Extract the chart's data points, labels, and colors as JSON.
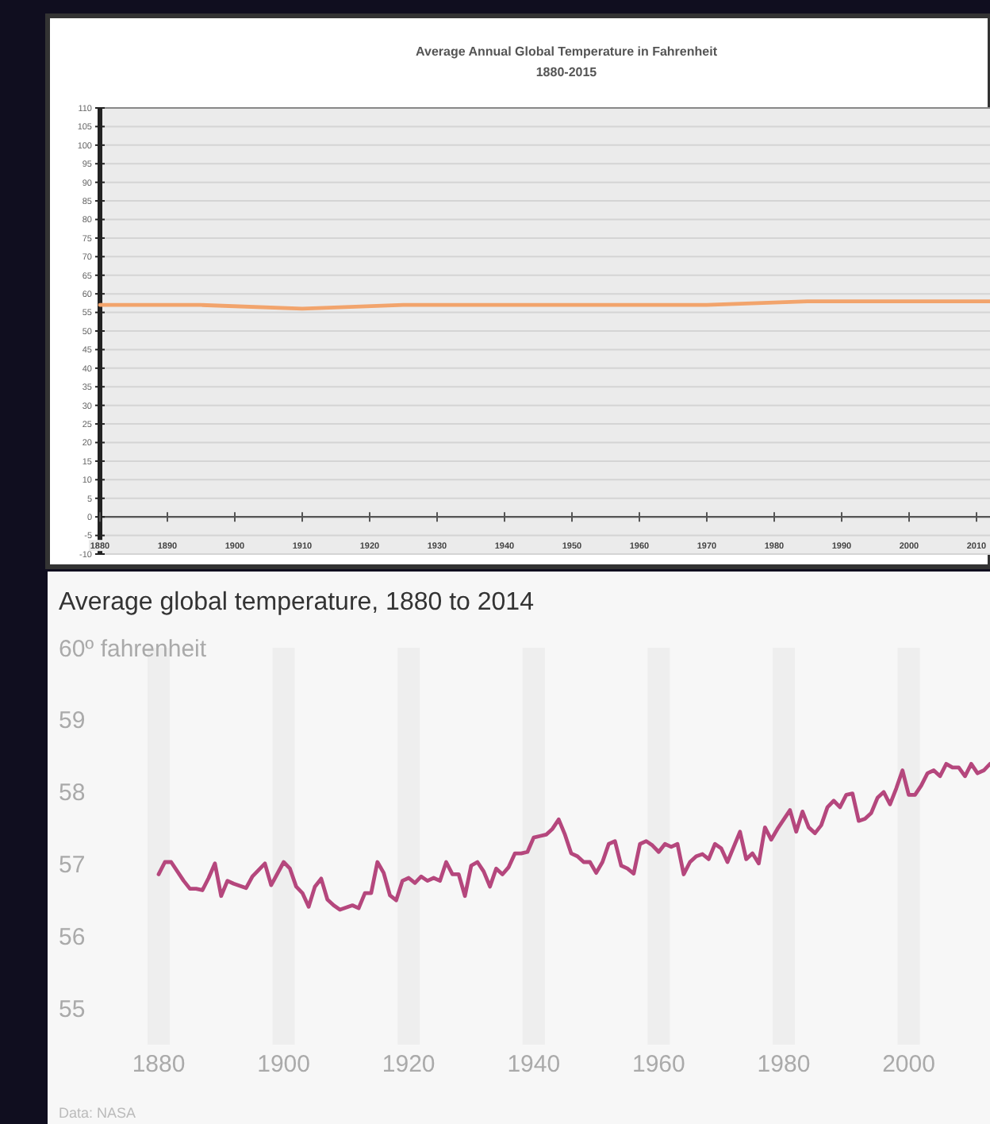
{
  "chart_data": [
    {
      "type": "line",
      "title": "Average Annual Global Temperature in Fahrenheit",
      "subtitle": "1880-2015",
      "x": [
        1880,
        1895,
        1910,
        1925,
        1940,
        1955,
        1970,
        1985,
        2000,
        2012
      ],
      "values": [
        57,
        57,
        56,
        57,
        57,
        57,
        57,
        58,
        58,
        58
      ],
      "color": "#f2a46c",
      "xlim": [
        1880,
        2012
      ],
      "xticks": [
        1880,
        1890,
        1900,
        1910,
        1920,
        1930,
        1940,
        1950,
        1960,
        1970,
        1980,
        1990,
        2000,
        2010
      ],
      "ylim": [
        -10,
        110
      ],
      "yticks": [
        -10,
        -5,
        0,
        5,
        10,
        15,
        20,
        25,
        30,
        35,
        40,
        45,
        50,
        55,
        60,
        65,
        70,
        75,
        80,
        85,
        90,
        95,
        100,
        105,
        110
      ],
      "grid": "y"
    },
    {
      "type": "line",
      "title": "Average global temperature, 1880 to 2014",
      "annotations": [
        "Data: NASA"
      ],
      "x": [
        1880,
        1881,
        1882,
        1884,
        1885,
        1886,
        1887,
        1888,
        1889,
        1890,
        1891,
        1892,
        1894,
        1895,
        1897,
        1898,
        1900,
        1901,
        1902,
        1903,
        1904,
        1905,
        1906,
        1907,
        1908,
        1909,
        1911,
        1912,
        1913,
        1914,
        1915,
        1916,
        1917,
        1918,
        1919,
        1920,
        1921,
        1922,
        1923,
        1924,
        1925,
        1926,
        1927,
        1928,
        1929,
        1930,
        1931,
        1932,
        1933,
        1934,
        1935,
        1936,
        1937,
        1938,
        1939,
        1940,
        1941,
        1942,
        1943,
        1944,
        1945,
        1946,
        1947,
        1948,
        1949,
        1950,
        1951,
        1952,
        1953,
        1954,
        1955,
        1956,
        1957,
        1958,
        1959,
        1960,
        1961,
        1962,
        1963,
        1964,
        1965,
        1966,
        1967,
        1968,
        1969,
        1970,
        1971,
        1972,
        1973,
        1974,
        1975,
        1976,
        1977,
        1978,
        1979,
        1980,
        1981,
        1982,
        1983,
        1984,
        1985,
        1986,
        1987,
        1988,
        1989,
        1990,
        1991,
        1992,
        1993,
        1994,
        1995,
        1996,
        1997,
        1998,
        1999,
        2000,
        2001,
        2002,
        2003,
        2004,
        2005,
        2006,
        2007,
        2008,
        2009,
        2010,
        2011,
        2012,
        2013
      ],
      "values": [
        56.86,
        57.03,
        57.03,
        56.77,
        56.66,
        56.66,
        56.64,
        56.81,
        57.01,
        56.56,
        56.77,
        56.73,
        56.67,
        56.83,
        57.01,
        56.71,
        57.03,
        56.94,
        56.69,
        56.6,
        56.41,
        56.69,
        56.8,
        56.51,
        56.43,
        56.37,
        56.43,
        56.39,
        56.6,
        56.6,
        57.03,
        56.88,
        56.57,
        56.5,
        56.77,
        56.81,
        56.74,
        56.83,
        56.77,
        56.81,
        56.77,
        57.03,
        56.86,
        56.86,
        56.56,
        56.98,
        57.03,
        56.9,
        56.69,
        56.94,
        56.86,
        56.96,
        57.15,
        57.15,
        57.17,
        57.37,
        57.39,
        57.41,
        57.49,
        57.62,
        57.41,
        57.15,
        57.11,
        57.03,
        57.03,
        56.88,
        57.03,
        57.28,
        57.32,
        56.98,
        56.94,
        56.87,
        57.28,
        57.32,
        57.26,
        57.17,
        57.28,
        57.24,
        57.28,
        56.86,
        57.03,
        57.11,
        57.14,
        57.07,
        57.28,
        57.22,
        57.03,
        57.24,
        57.45,
        57.07,
        57.15,
        57.01,
        57.51,
        57.34,
        57.49,
        57.62,
        57.75,
        57.45,
        57.73,
        57.51,
        57.43,
        57.54,
        57.79,
        57.88,
        57.79,
        57.96,
        57.98,
        57.6,
        57.63,
        57.71,
        57.92,
        58,
        57.83,
        58.05,
        58.3,
        57.96,
        57.96,
        58.09,
        58.26,
        58.3,
        58.22,
        58.39,
        58.34,
        58.34,
        58.22,
        58.39,
        58.26,
        58.3,
        58.39
      ],
      "color": "#b5477d",
      "xlim": [
        1880,
        2013
      ],
      "xticks": [
        1880,
        1900,
        1920,
        1940,
        1960,
        1980,
        2000
      ],
      "ylim": [
        54.5,
        60
      ],
      "yticks": [
        55,
        56,
        57,
        58,
        59,
        {
          "value": 60,
          "label": "60º fahrenheit"
        }
      ],
      "grid": "x"
    }
  ]
}
